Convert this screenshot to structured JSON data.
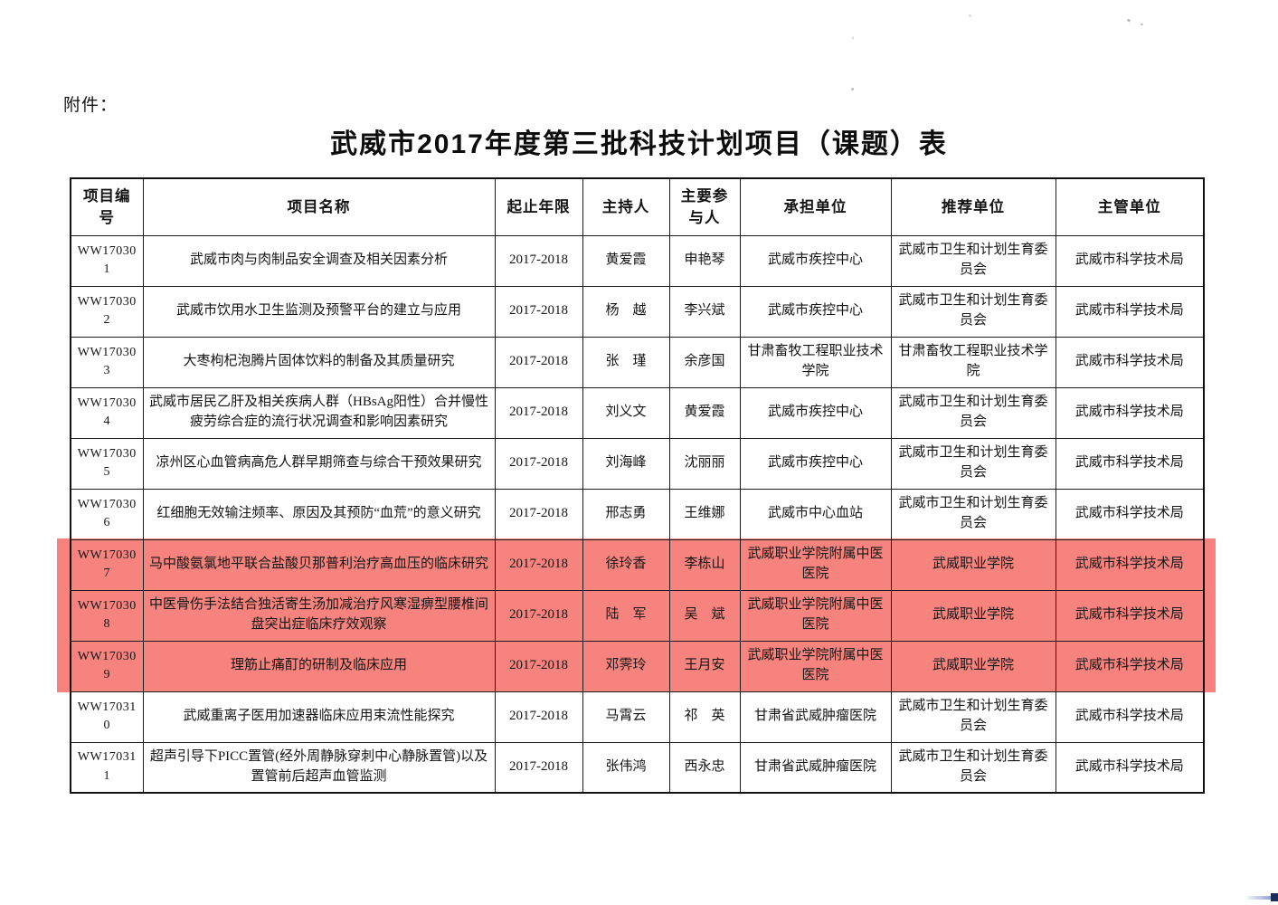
{
  "attachment_label": "附件：",
  "title": "武威市2017年度第三批科技计划项目（课题）表",
  "colors": {
    "highlight": "#f6837d"
  },
  "table": {
    "headers": [
      "项目编号",
      "项目名称",
      "起止年限",
      "主持人",
      "主要参与人",
      "承担单位",
      "推荐单位",
      "主管单位"
    ],
    "rows": [
      {
        "no": "WW170301",
        "name": "武威市肉与肉制品安全调查及相关因素分析",
        "years": "2017-2018",
        "leader": "黄爱霞",
        "participant": "申艳琴",
        "undertaker": "武威市疾控中心",
        "recommender": "武威市卫生和计划生育委员会",
        "supervisor": "武威市科学技术局",
        "highlighted": false
      },
      {
        "no": "WW170302",
        "name": "武威市饮用水卫生监测及预警平台的建立与应用",
        "years": "2017-2018",
        "leader": "杨　越",
        "participant": "李兴斌",
        "undertaker": "武威市疾控中心",
        "recommender": "武威市卫生和计划生育委员会",
        "supervisor": "武威市科学技术局",
        "highlighted": false
      },
      {
        "no": "WW170303",
        "name": "大枣枸杞泡腾片固体饮料的制备及其质量研究",
        "years": "2017-2018",
        "leader": "张　瑾",
        "participant": "余彦国",
        "undertaker": "甘肃畜牧工程职业技术学院",
        "recommender": "甘肃畜牧工程职业技术学院",
        "supervisor": "武威市科学技术局",
        "highlighted": false
      },
      {
        "no": "WW170304",
        "name": "武威市居民乙肝及相关疾病人群（HBsAg阳性）合并慢性疲劳综合症的流行状况调查和影响因素研究",
        "years": "2017-2018",
        "leader": "刘义文",
        "participant": "黄爱霞",
        "undertaker": "武威市疾控中心",
        "recommender": "武威市卫生和计划生育委员会",
        "supervisor": "武威市科学技术局",
        "highlighted": false
      },
      {
        "no": "WW170305",
        "name": "凉州区心血管病高危人群早期筛查与综合干预效果研究",
        "years": "2017-2018",
        "leader": "刘海峰",
        "participant": "沈丽丽",
        "undertaker": "武威市疾控中心",
        "recommender": "武威市卫生和计划生育委员会",
        "supervisor": "武威市科学技术局",
        "highlighted": false
      },
      {
        "no": "WW170306",
        "name": "红细胞无效输注频率、原因及其预防“血荒”的意义研究",
        "years": "2017-2018",
        "leader": "邢志勇",
        "participant": "王维娜",
        "undertaker": "武威市中心血站",
        "recommender": "武威市卫生和计划生育委员会",
        "supervisor": "武威市科学技术局",
        "highlighted": false
      },
      {
        "no": "WW170307",
        "name": "马中酸氨氯地平联合盐酸贝那普利治疗高血压的临床研究",
        "years": "2017-2018",
        "leader": "徐玲香",
        "participant": "李栋山",
        "undertaker": "武威职业学院附属中医医院",
        "recommender": "武威职业学院",
        "supervisor": "武威市科学技术局",
        "highlighted": true
      },
      {
        "no": "WW170308",
        "name": "中医骨伤手法结合独活寄生汤加减治疗风寒湿痹型腰椎间盘突出症临床疗效观察",
        "years": "2017-2018",
        "leader": "陆　军",
        "participant": "吴　斌",
        "undertaker": "武威职业学院附属中医医院",
        "recommender": "武威职业学院",
        "supervisor": "武威市科学技术局",
        "highlighted": true
      },
      {
        "no": "WW170309",
        "name": "理筋止痛酊的研制及临床应用",
        "years": "2017-2018",
        "leader": "邓霁玲",
        "participant": "王月安",
        "undertaker": "武威职业学院附属中医医院",
        "recommender": "武威职业学院",
        "supervisor": "武威市科学技术局",
        "highlighted": true
      },
      {
        "no": "WW170310",
        "name": "武威重离子医用加速器临床应用束流性能探究",
        "years": "2017-2018",
        "leader": "马霄云",
        "participant": "祁　英",
        "undertaker": "甘肃省武威肿瘤医院",
        "recommender": "武威市卫生和计划生育委员会",
        "supervisor": "武威市科学技术局",
        "highlighted": false
      },
      {
        "no": "WW170311",
        "name": "超声引导下PICC置管(经外周静脉穿刺中心静脉置管)以及置管前后超声血管监测",
        "years": "2017-2018",
        "leader": "张伟鸿",
        "participant": "西永忠",
        "undertaker": "甘肃省武威肿瘤医院",
        "recommender": "武威市卫生和计划生育委员会",
        "supervisor": "武威市科学技术局",
        "highlighted": false
      }
    ]
  }
}
